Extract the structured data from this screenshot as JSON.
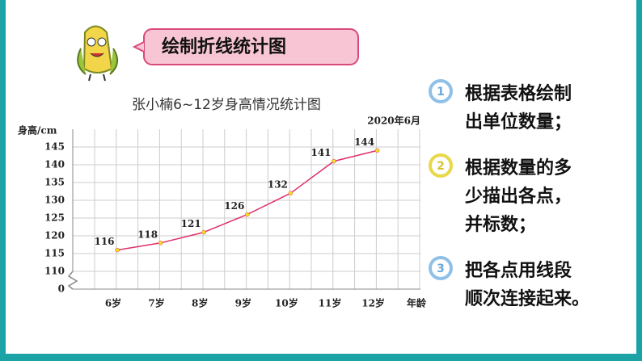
{
  "header": {
    "title": "绘制折线统计图"
  },
  "steps": [
    {
      "number": "1",
      "lines": [
        "根据表格绘制",
        "出单位数量；"
      ]
    },
    {
      "number": "2",
      "lines": [
        "根据数量的多",
        "少描出各点，",
        "并标数；"
      ]
    },
    {
      "number": "3",
      "lines": [
        "把各点用线段",
        "顺次连接起来。"
      ]
    }
  ],
  "chart_data": {
    "type": "line",
    "title": "张小楠6~12岁身高情况统计图",
    "subtitle": "2020年6月",
    "y_label": "身高/cm",
    "x_label": "年龄",
    "categories": [
      "6岁",
      "7岁",
      "8岁",
      "9岁",
      "10岁",
      "11岁",
      "12岁"
    ],
    "values": [
      116,
      118,
      121,
      126,
      132,
      141,
      144
    ],
    "color": "#e0306a",
    "marker_color": "#f2e020",
    "ylim": [
      105,
      150
    ],
    "yticks": [
      0,
      110,
      115,
      120,
      125,
      130,
      135,
      140,
      145
    ],
    "axis_break": true,
    "grid": true
  }
}
